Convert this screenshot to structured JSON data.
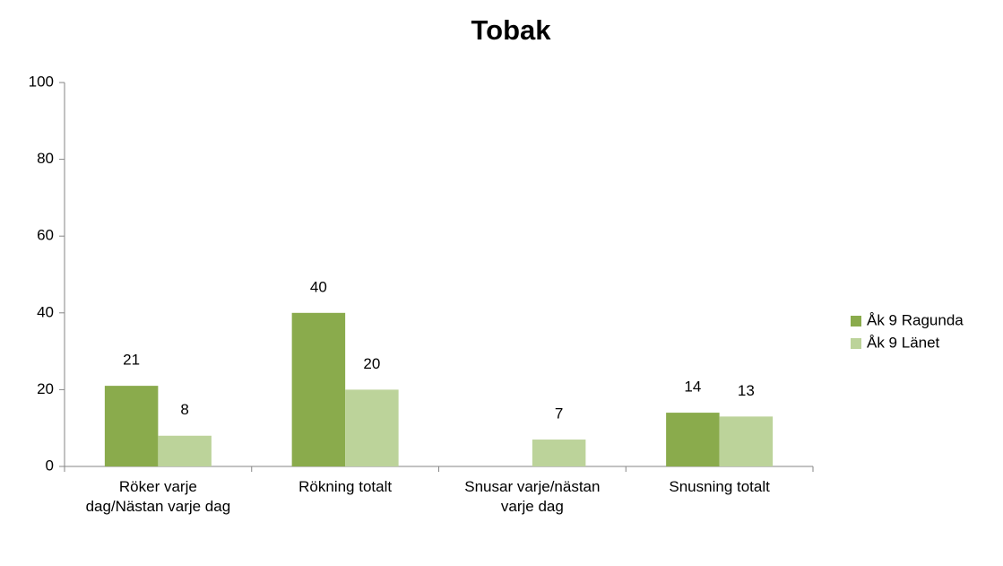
{
  "chart_data": {
    "type": "bar",
    "title": "Tobak",
    "categories": [
      "Röker varje dag/Nästan varje dag",
      "Rökning totalt",
      "Snusar varje/nästan varje dag",
      "Snusning totalt"
    ],
    "series": [
      {
        "name": "Åk 9 Ragunda",
        "color": "#8aab4c",
        "values": [
          21,
          40,
          null,
          14
        ]
      },
      {
        "name": "Åk 9 Länet",
        "color": "#bcd39a",
        "values": [
          8,
          20,
          7,
          13
        ]
      }
    ],
    "ylim": [
      0,
      100
    ],
    "yticks": [
      0,
      20,
      40,
      60,
      80,
      100
    ],
    "grid": false,
    "legend": "right"
  }
}
